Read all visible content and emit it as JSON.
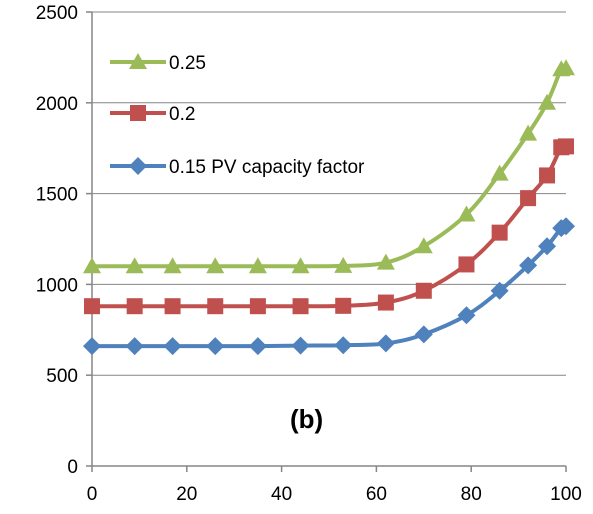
{
  "chart_data": {
    "type": "line",
    "x": [
      0,
      9,
      17,
      26,
      35,
      44,
      53,
      62,
      70,
      79,
      86,
      92,
      96,
      99,
      100
    ],
    "series": [
      {
        "name": "0.25",
        "color": "#9BBB59",
        "marker": "triangle",
        "values": [
          1100,
          1100,
          1100,
          1100,
          1100,
          1100,
          1102,
          1120,
          1210,
          1385,
          1610,
          1830,
          2000,
          2185,
          2190
        ]
      },
      {
        "name": "0.2",
        "color": "#C0504D",
        "marker": "square",
        "values": [
          880,
          880,
          880,
          880,
          880,
          880,
          882,
          900,
          965,
          1110,
          1285,
          1475,
          1600,
          1755,
          1760
        ]
      },
      {
        "name": "0.15 PV capacity factor",
        "color": "#4F81BD",
        "marker": "diamond",
        "values": [
          660,
          660,
          660,
          660,
          660,
          663,
          665,
          675,
          725,
          830,
          965,
          1105,
          1210,
          1310,
          1320
        ]
      }
    ],
    "xlim": [
      0,
      100
    ],
    "ylim": [
      0,
      2500
    ],
    "xticks": [
      "0",
      "20",
      "40",
      "60",
      "80",
      "100"
    ],
    "yticks": [
      "0",
      "500",
      "1000",
      "1500",
      "2000",
      "2500"
    ],
    "grid": "horizontal",
    "legend_position": "top-left",
    "annotation": "(b)"
  }
}
